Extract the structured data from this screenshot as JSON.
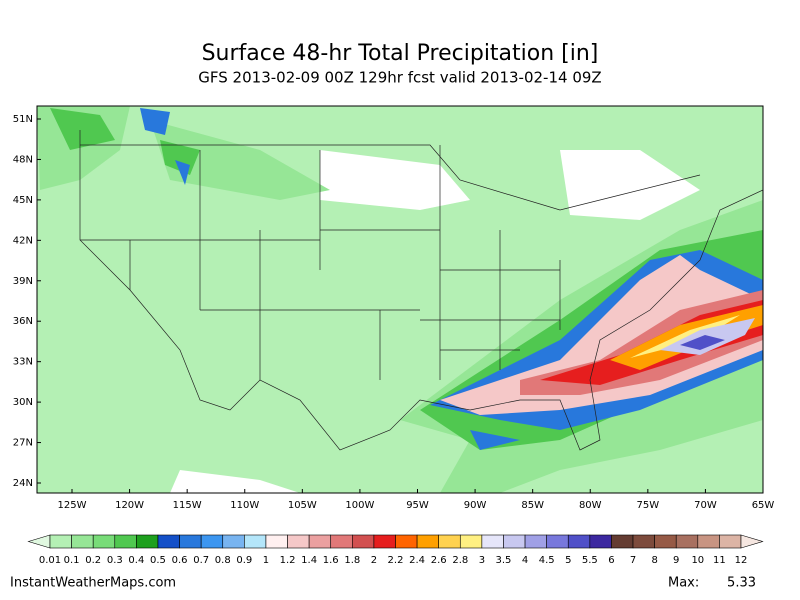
{
  "header": {
    "title": "Surface 48-hr Total Precipitation [in]",
    "subtitle": "GFS 2013-02-09 00Z 129hr fcst valid 2013-02-14 09Z"
  },
  "map": {
    "lat_labels": [
      "51N",
      "48N",
      "45N",
      "42N",
      "39N",
      "36N",
      "33N",
      "30N",
      "27N",
      "24N"
    ],
    "lon_labels": [
      "125W",
      "120W",
      "115W",
      "110W",
      "105W",
      "100W",
      "95W",
      "90W",
      "85W",
      "80W",
      "75W",
      "70W",
      "65W"
    ]
  },
  "colorbar": {
    "levels": [
      0.01,
      0.1,
      0.2,
      0.3,
      0.4,
      0.5,
      0.6,
      0.7,
      0.8,
      0.9,
      1,
      1.2,
      1.4,
      1.6,
      1.8,
      2,
      2.2,
      2.4,
      2.6,
      2.8,
      3,
      3.5,
      4,
      4.5,
      5,
      5.5,
      6,
      7,
      8,
      9,
      10,
      11,
      12
    ],
    "colors": [
      "#e0f8e0",
      "#b4f0b4",
      "#96e696",
      "#78dc78",
      "#50c850",
      "#1ea01e",
      "#1450c8",
      "#2878dc",
      "#3c96f0",
      "#78b4f0",
      "#b4e6fa",
      "#fff0f0",
      "#f5c8c8",
      "#eba0a0",
      "#e17878",
      "#d25050",
      "#e61e1e",
      "#ff6400",
      "#ffa000",
      "#ffd250",
      "#fff082",
      "#e6e6fa",
      "#c8c8f0",
      "#a0a0e6",
      "#7878dc",
      "#5050c8",
      "#3c28a0",
      "#643c32",
      "#7d4b3c",
      "#965a46",
      "#a87060",
      "#c89482",
      "#dcb4a5",
      "#ecd2c8",
      "#f5e6e0"
    ]
  },
  "footer": {
    "site": "InstantWeatherMaps.com",
    "max_label": "Max:",
    "max_value": 5.33
  }
}
